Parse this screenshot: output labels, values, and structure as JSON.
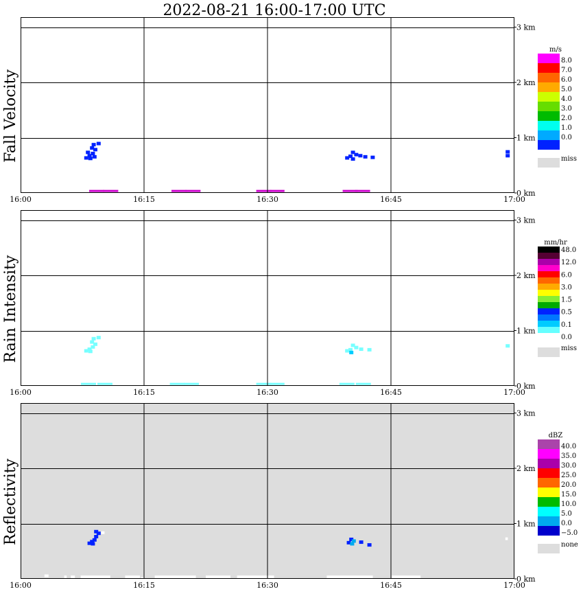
{
  "chart_data": {
    "type": "heatmap",
    "title": "2022-08-21   16:00-17:00 UTC",
    "x_ticks": [
      "16:00",
      "16:15",
      "16:30",
      "16:45",
      "17:00"
    ],
    "x_range_min": [
      0,
      60
    ],
    "y_ticks": [
      "0 km",
      "1 km",
      "2 km",
      "3 km"
    ],
    "y_range_km": [
      0,
      3.0
    ],
    "panels": [
      {
        "id": "fall-velocity",
        "ylabel": "Fall Velocity",
        "unit": "m/s",
        "background": "#ffffff",
        "colorbar": {
          "labels": [
            "8.0",
            "7.0",
            "6.0",
            "5.0",
            "4.0",
            "3.0",
            "2.0",
            "1.0",
            "0.0"
          ],
          "colors": [
            "#ff00ff",
            "#ff0000",
            "#ff6600",
            "#ffaa00",
            "#ccff00",
            "#66dd00",
            "#00bb00",
            "#00ffee",
            "#00aaff",
            "#0022ff"
          ],
          "miss_label": "miss",
          "miss_color": "#dddddd"
        },
        "cells": [
          {
            "t": 8.8,
            "h": 0.88,
            "c": "#0022ff"
          },
          {
            "t": 9.4,
            "h": 0.9,
            "c": "#0022ff"
          },
          {
            "t": 8.6,
            "h": 0.82,
            "c": "#0022ff"
          },
          {
            "t": 9.0,
            "h": 0.79,
            "c": "#0022ff"
          },
          {
            "t": 8.7,
            "h": 0.72,
            "c": "#0022ff"
          },
          {
            "t": 8.3,
            "h": 0.68,
            "c": "#0022ff"
          },
          {
            "t": 7.9,
            "h": 0.64,
            "c": "#0022ff"
          },
          {
            "t": 8.4,
            "h": 0.63,
            "c": "#0022ff"
          },
          {
            "t": 8.9,
            "h": 0.66,
            "c": "#0022ff"
          },
          {
            "t": 8.1,
            "h": 0.74,
            "c": "#0022ff"
          },
          {
            "t": 40.3,
            "h": 0.74,
            "c": "#0022ff"
          },
          {
            "t": 40.7,
            "h": 0.7,
            "c": "#0022ff"
          },
          {
            "t": 40.0,
            "h": 0.67,
            "c": "#0022ff"
          },
          {
            "t": 39.6,
            "h": 0.64,
            "c": "#0022ff"
          },
          {
            "t": 41.2,
            "h": 0.68,
            "c": "#0022ff"
          },
          {
            "t": 41.8,
            "h": 0.66,
            "c": "#0022ff"
          },
          {
            "t": 42.7,
            "h": 0.65,
            "c": "#0022ff"
          },
          {
            "t": 40.3,
            "h": 0.62,
            "c": "#0022ff"
          },
          {
            "t": 59.1,
            "h": 0.75,
            "c": "#0022ff"
          },
          {
            "t": 59.1,
            "h": 0.68,
            "c": "#0022ff"
          },
          {
            "t": 8.5,
            "h": 0.03,
            "c": "#cc00cc"
          },
          {
            "t": 10.2,
            "h": 0.03,
            "c": "#cc00cc"
          },
          {
            "t": 18.5,
            "h": 0.03,
            "c": "#cc00cc"
          },
          {
            "t": 20.2,
            "h": 0.03,
            "c": "#cc00cc"
          },
          {
            "t": 28.8,
            "h": 0.03,
            "c": "#cc00cc"
          },
          {
            "t": 30.4,
            "h": 0.03,
            "c": "#cc00cc"
          },
          {
            "t": 39.3,
            "h": 0.03,
            "c": "#cc00cc"
          },
          {
            "t": 40.8,
            "h": 0.03,
            "c": "#cc00cc"
          }
        ],
        "white_cells": []
      },
      {
        "id": "rain-intensity",
        "ylabel": "Rain Intensity",
        "unit": "mm/hr",
        "background": "#ffffff",
        "colorbar": {
          "labels": [
            "48.0",
            "12.0",
            "6.0",
            "3.0",
            "1.5",
            "0.5",
            "0.1",
            "0.0"
          ],
          "colors": [
            "#000000",
            "#550033",
            "#aa00aa",
            "#ff00cc",
            "#ff0000",
            "#ff6600",
            "#ffaa00",
            "#ffff00",
            "#88ee33",
            "#00aa00",
            "#0022ff",
            "#0077ff",
            "#00ccff",
            "#66ffff",
            "#ffffff"
          ],
          "miss_label": "miss",
          "miss_color": "#dddddd"
        },
        "cells": [
          {
            "t": 8.8,
            "h": 0.86,
            "c": "#77ffff"
          },
          {
            "t": 9.4,
            "h": 0.88,
            "c": "#77ffff"
          },
          {
            "t": 8.6,
            "h": 0.8,
            "c": "#77ffff"
          },
          {
            "t": 9.0,
            "h": 0.76,
            "c": "#77ffff"
          },
          {
            "t": 8.7,
            "h": 0.71,
            "c": "#77ffff"
          },
          {
            "t": 8.3,
            "h": 0.67,
            "c": "#77ffff"
          },
          {
            "t": 7.9,
            "h": 0.64,
            "c": "#77ffff"
          },
          {
            "t": 8.4,
            "h": 0.63,
            "c": "#77ffff"
          },
          {
            "t": 40.3,
            "h": 0.74,
            "c": "#77ffff"
          },
          {
            "t": 40.7,
            "h": 0.7,
            "c": "#77ffff"
          },
          {
            "t": 40.0,
            "h": 0.66,
            "c": "#77ffff"
          },
          {
            "t": 39.6,
            "h": 0.64,
            "c": "#77ffff"
          },
          {
            "t": 41.3,
            "h": 0.67,
            "c": "#77ffff"
          },
          {
            "t": 42.3,
            "h": 0.66,
            "c": "#77ffff"
          },
          {
            "t": 40.1,
            "h": 0.61,
            "c": "#00ccff"
          },
          {
            "t": 59.1,
            "h": 0.73,
            "c": "#77ffff"
          },
          {
            "t": 7.5,
            "h": 0.03,
            "c": "#77ffff"
          },
          {
            "t": 9.5,
            "h": 0.03,
            "c": "#77ffff"
          },
          {
            "t": 18.3,
            "h": 0.03,
            "c": "#77ffff"
          },
          {
            "t": 20.0,
            "h": 0.03,
            "c": "#77ffff"
          },
          {
            "t": 28.8,
            "h": 0.03,
            "c": "#77ffff"
          },
          {
            "t": 30.4,
            "h": 0.03,
            "c": "#77ffff"
          },
          {
            "t": 38.9,
            "h": 0.03,
            "c": "#77ffff"
          },
          {
            "t": 40.9,
            "h": 0.03,
            "c": "#77ffff"
          }
        ],
        "white_cells": []
      },
      {
        "id": "reflectivity",
        "ylabel": "Reflectivity",
        "unit": "dBZ",
        "background": "#dddddd",
        "colorbar": {
          "labels": [
            "40.0",
            "35.0",
            "30.0",
            "25.0",
            "20.0",
            "15.0",
            "10.0",
            "5.0",
            "0.0",
            "−5.0"
          ],
          "colors": [
            "#aa44aa",
            "#ff00ff",
            "#aa00aa",
            "#ff0000",
            "#ff6600",
            "#ffff00",
            "#00bb00",
            "#00ffff",
            "#00aaee",
            "#0000cc"
          ],
          "miss_label": "none",
          "miss_color": "#dddddd"
        },
        "cells": [
          {
            "t": 9.1,
            "h": 0.86,
            "c": "#0022ff"
          },
          {
            "t": 9.4,
            "h": 0.83,
            "c": "#0022ff"
          },
          {
            "t": 9.1,
            "h": 0.77,
            "c": "#0022ff"
          },
          {
            "t": 8.9,
            "h": 0.71,
            "c": "#0022ff"
          },
          {
            "t": 8.6,
            "h": 0.68,
            "c": "#0022ff"
          },
          {
            "t": 8.3,
            "h": 0.65,
            "c": "#0022ff"
          },
          {
            "t": 8.7,
            "h": 0.64,
            "c": "#0022ff"
          },
          {
            "t": 40.1,
            "h": 0.72,
            "c": "#0022ff"
          },
          {
            "t": 40.4,
            "h": 0.69,
            "c": "#00aaee"
          },
          {
            "t": 39.8,
            "h": 0.66,
            "c": "#0022ff"
          },
          {
            "t": 40.2,
            "h": 0.64,
            "c": "#00aaee"
          },
          {
            "t": 41.3,
            "h": 0.67,
            "c": "#0022ff"
          },
          {
            "t": 42.3,
            "h": 0.62,
            "c": "#0022ff"
          }
        ],
        "white_cells": [
          {
            "t0": 2.9,
            "t1": 3.4,
            "h": 0.08
          },
          {
            "t0": 5.3,
            "t1": 5.6,
            "h": 0.06
          },
          {
            "t0": 6.1,
            "t1": 6.6,
            "h": 0.06
          },
          {
            "t0": 7.3,
            "t1": 10.9,
            "h": 0.06
          },
          {
            "t0": 12.7,
            "t1": 14.5,
            "h": 0.06
          },
          {
            "t0": 14.6,
            "t1": 15.0,
            "h": 0.03
          },
          {
            "t0": 16.3,
            "t1": 21.3,
            "h": 0.06
          },
          {
            "t0": 22.5,
            "t1": 25.5,
            "h": 0.06
          },
          {
            "t0": 26.3,
            "t1": 30.8,
            "h": 0.06
          },
          {
            "t0": 37.2,
            "t1": 42.8,
            "h": 0.06
          },
          {
            "t0": 45.1,
            "t1": 48.6,
            "h": 0.06
          },
          {
            "t0": 9.8,
            "t1": 10.2,
            "h": 0.86
          },
          {
            "t0": 58.9,
            "t1": 59.2,
            "h": 0.75
          }
        ]
      }
    ]
  }
}
